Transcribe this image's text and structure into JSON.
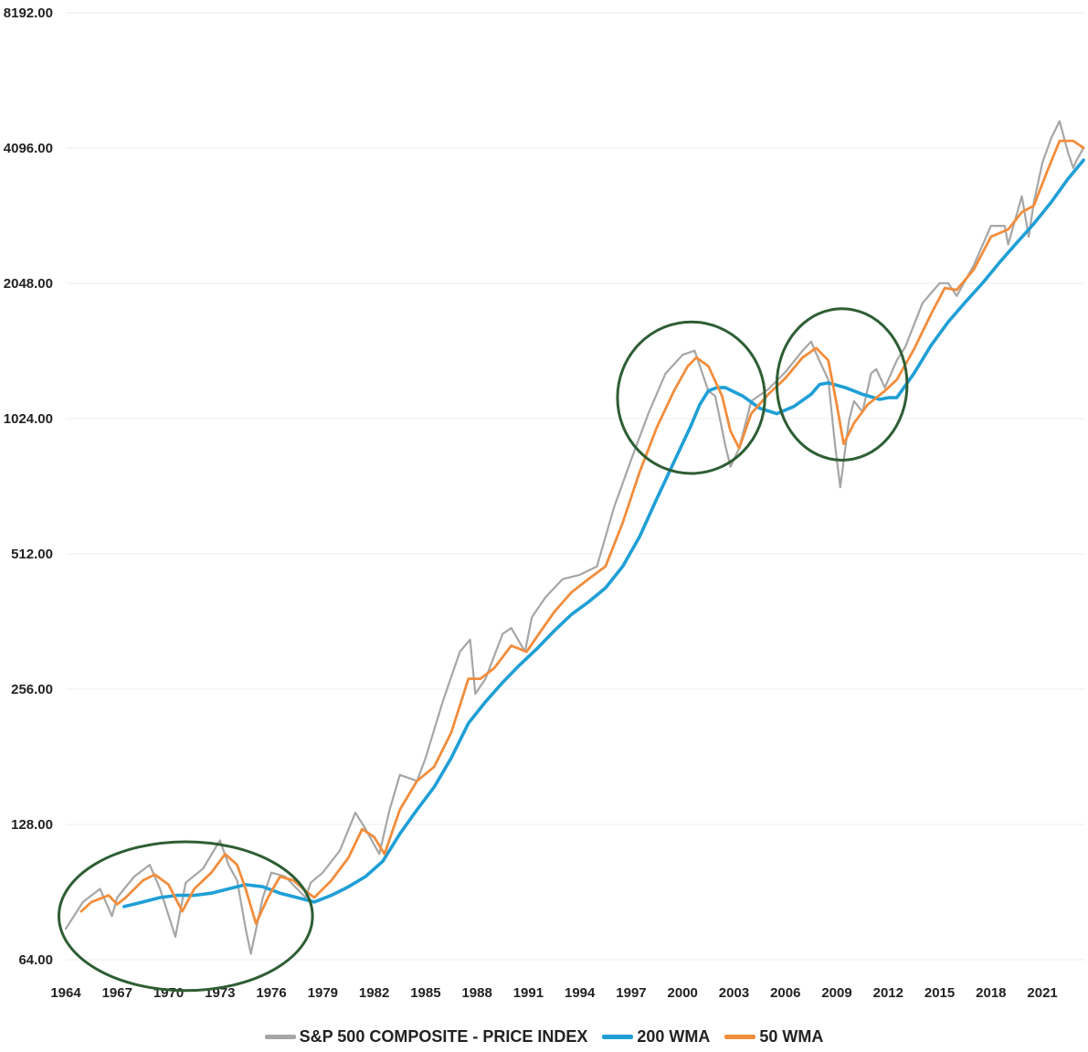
{
  "chart_data": {
    "type": "line",
    "title": "",
    "xlabel": "",
    "ylabel": "",
    "y_scale": "log2",
    "ylim": [
      64,
      8192
    ],
    "xlim": [
      1964,
      2023.5
    ],
    "grid": "horizontal",
    "legend_position": "bottom",
    "y_ticks": [
      "64.00",
      "128.00",
      "256.00",
      "512.00",
      "1024.00",
      "2048.00",
      "4096.00",
      "8192.00"
    ],
    "x_ticks": [
      "1964",
      "1967",
      "1970",
      "1973",
      "1976",
      "1979",
      "1982",
      "1985",
      "1988",
      "1991",
      "1994",
      "1997",
      "2000",
      "2003",
      "2006",
      "2009",
      "2012",
      "2015",
      "2018",
      "2021"
    ],
    "series": [
      {
        "name": "S&P 500 COMPOSITE - PRICE INDEX",
        "color": "#a6a6a6",
        "x": [
          1964.0,
          1965.0,
          1966.0,
          1966.7,
          1967.0,
          1968.0,
          1968.9,
          1969.5,
          1970.4,
          1971.0,
          1972.0,
          1973.0,
          1973.5,
          1974.0,
          1974.5,
          1974.8,
          1975.5,
          1976.0,
          1976.8,
          1977.5,
          1978.0,
          1978.3,
          1979.0,
          1980.0,
          1980.9,
          1981.5,
          1982.3,
          1982.9,
          1983.5,
          1984.5,
          1985.0,
          1986.0,
          1987.0,
          1987.6,
          1987.9,
          1988.5,
          1989.5,
          1990.0,
          1990.8,
          1991.2,
          1992.0,
          1993.0,
          1994.0,
          1995.0,
          1996.0,
          1997.0,
          1998.0,
          1999.0,
          2000.0,
          2000.7,
          2001.5,
          2001.9,
          2002.5,
          2002.8,
          2003.3,
          2004.0,
          2005.0,
          2006.0,
          2007.0,
          2007.5,
          2007.9,
          2008.5,
          2008.9,
          2009.2,
          2009.7,
          2010.0,
          2010.5,
          2011.0,
          2011.3,
          2011.8,
          2012.5,
          2013.0,
          2014.0,
          2015.0,
          2015.5,
          2016.0,
          2017.0,
          2018.0,
          2018.8,
          2019.0,
          2019.8,
          2020.2,
          2020.5,
          2021.0,
          2021.5,
          2022.0,
          2022.5,
          2022.8,
          2023.0,
          2023.4
        ],
        "values": [
          75,
          86,
          92,
          80,
          88,
          98,
          104,
          92,
          72,
          95,
          102,
          118,
          104,
          96,
          75,
          66,
          88,
          100,
          98,
          92,
          88,
          95,
          100,
          112,
          136,
          125,
          110,
          138,
          165,
          160,
          180,
          240,
          310,
          330,
          250,
          270,
          340,
          350,
          310,
          370,
          410,
          450,
          460,
          480,
          650,
          830,
          1050,
          1290,
          1420,
          1450,
          1180,
          1150,
          890,
          800,
          880,
          1120,
          1190,
          1300,
          1450,
          1520,
          1400,
          1250,
          890,
          720,
          1010,
          1120,
          1060,
          1290,
          1320,
          1200,
          1380,
          1480,
          1850,
          2050,
          2050,
          1920,
          2250,
          2750,
          2750,
          2500,
          3200,
          2600,
          3100,
          3800,
          4300,
          4700,
          4000,
          3700,
          3850,
          4100
        ]
      },
      {
        "name": "200 WMA",
        "color": "#1f9fd6",
        "x": [
          1967.4,
          1968.5,
          1969.5,
          1970.5,
          1971.5,
          1972.5,
          1973.5,
          1974.5,
          1975.5,
          1976.5,
          1977.5,
          1978.5,
          1979.5,
          1980.5,
          1981.5,
          1982.5,
          1983.5,
          1984.5,
          1985.5,
          1986.5,
          1987.5,
          1988.5,
          1989.5,
          1990.5,
          1991.5,
          1992.5,
          1993.5,
          1994.5,
          1995.5,
          1996.5,
          1997.5,
          1998.5,
          1999.5,
          2000.5,
          2001.0,
          2001.5,
          2002.0,
          2002.5,
          2003.5,
          2004.5,
          2005.5,
          2006.5,
          2007.5,
          2008.0,
          2008.5,
          2009.5,
          2010.5,
          2011.5,
          2012.0,
          2012.5,
          2013.5,
          2014.5,
          2015.5,
          2016.5,
          2017.5,
          2018.5,
          2019.5,
          2020.5,
          2021.5,
          2022.5,
          2023.4
        ],
        "values": [
          84,
          86,
          88,
          89,
          89,
          90,
          92,
          94,
          93,
          90,
          88,
          86,
          89,
          93,
          98,
          106,
          122,
          138,
          155,
          180,
          215,
          240,
          265,
          290,
          315,
          345,
          375,
          400,
          430,
          480,
          560,
          680,
          820,
          990,
          1100,
          1180,
          1200,
          1200,
          1150,
          1080,
          1050,
          1090,
          1160,
          1220,
          1230,
          1200,
          1160,
          1130,
          1140,
          1140,
          1290,
          1490,
          1680,
          1860,
          2050,
          2280,
          2520,
          2780,
          3100,
          3500,
          3850
        ]
      },
      {
        "name": "50 WMA",
        "color": "#f28d3c",
        "x": [
          1964.9,
          1965.5,
          1966.5,
          1967.0,
          1967.5,
          1968.5,
          1969.2,
          1970.0,
          1970.8,
          1971.5,
          1972.5,
          1973.3,
          1974.0,
          1974.5,
          1975.1,
          1975.8,
          1976.5,
          1977.3,
          1978.0,
          1978.5,
          1979.5,
          1980.5,
          1981.3,
          1982.0,
          1982.6,
          1983.5,
          1984.5,
          1985.5,
          1986.5,
          1987.5,
          1988.2,
          1989.0,
          1990.0,
          1990.9,
          1991.5,
          1992.5,
          1993.5,
          1994.5,
          1995.5,
          1996.5,
          1997.5,
          1998.5,
          1999.5,
          2000.3,
          2000.8,
          2001.5,
          2002.3,
          2002.8,
          2003.3,
          2004.0,
          2005.0,
          2006.0,
          2007.0,
          2007.8,
          2008.5,
          2009.0,
          2009.4,
          2010.0,
          2010.8,
          2011.8,
          2012.5,
          2013.5,
          2014.5,
          2015.3,
          2016.0,
          2017.0,
          2018.0,
          2019.0,
          2019.8,
          2020.5,
          2021.3,
          2022.0,
          2022.8,
          2023.4
        ],
        "values": [
          82,
          86,
          89,
          85,
          88,
          96,
          99,
          94,
          82,
          92,
          100,
          110,
          104,
          92,
          77,
          88,
          98,
          96,
          91,
          88,
          96,
          108,
          125,
          120,
          110,
          138,
          160,
          172,
          205,
          270,
          270,
          285,
          320,
          310,
          335,
          380,
          420,
          450,
          480,
          600,
          780,
          980,
          1180,
          1340,
          1400,
          1340,
          1150,
          960,
          880,
          1050,
          1160,
          1260,
          1400,
          1470,
          1380,
          1100,
          900,
          1000,
          1100,
          1180,
          1250,
          1460,
          1750,
          2000,
          1980,
          2200,
          2600,
          2700,
          2950,
          3050,
          3650,
          4250,
          4250,
          4100
        ]
      }
    ],
    "highlights": [
      {
        "label": "circle-1966-1979",
        "cx_year": 1971.0,
        "cy_value": 80,
        "rx_years": 7.4,
        "ry_log2": 0.55
      },
      {
        "label": "circle-1997-2004",
        "cx_year": 2000.5,
        "cy_value": 1140,
        "rx_years": 4.3,
        "ry_log2": 0.56
      },
      {
        "label": "circle-2007-2012",
        "cx_year": 2009.3,
        "cy_value": 1220,
        "rx_years": 3.8,
        "ry_log2": 0.56
      }
    ],
    "highlight_color": "#2e5e34"
  },
  "legend": {
    "items": [
      {
        "label": "S&P 500 COMPOSITE - PRICE INDEX",
        "color": "#a6a6a6"
      },
      {
        "label": "200 WMA",
        "color": "#1f9fd6"
      },
      {
        "label": "50 WMA",
        "color": "#f28d3c"
      }
    ]
  }
}
